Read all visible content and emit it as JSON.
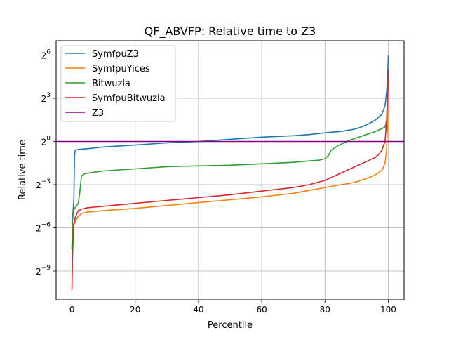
{
  "chart_data": {
    "type": "line",
    "title": "QF_ABVFP: Relative time to Z3",
    "xlabel": "Percentile",
    "ylabel": "Relative time",
    "yscale": "log2",
    "xlim": [
      -5,
      105
    ],
    "ylim_log2": [
      -11,
      7
    ],
    "xticks": [
      0,
      20,
      40,
      60,
      80,
      100
    ],
    "yticks": [
      {
        "base": "2",
        "exp": "6",
        "value_log2": 6
      },
      {
        "base": "2",
        "exp": "3",
        "value_log2": 3
      },
      {
        "base": "2",
        "exp": "0",
        "value_log2": 0
      },
      {
        "base": "2",
        "exp": "−3",
        "value_log2": -3
      },
      {
        "base": "2",
        "exp": "−6",
        "value_log2": -6
      },
      {
        "base": "2",
        "exp": "−9",
        "value_log2": -9
      }
    ],
    "grid": true,
    "legend_position": "top-left",
    "series": [
      {
        "name": "SymfpuZ3",
        "color": "#1f77b4",
        "x": [
          0,
          0.3,
          0.6,
          0.8,
          1.0,
          1.5,
          2,
          5,
          10,
          20,
          30,
          40,
          50,
          60,
          65,
          70,
          75,
          80,
          85,
          88,
          90,
          92,
          94,
          96,
          98,
          99,
          99.5,
          99.8,
          100
        ],
        "log2y": [
          -5.6,
          -5.0,
          -4.0,
          -1.0,
          -0.6,
          -0.58,
          -0.55,
          -0.5,
          -0.38,
          -0.25,
          -0.1,
          0.0,
          0.15,
          0.3,
          0.35,
          0.4,
          0.48,
          0.6,
          0.7,
          0.8,
          0.9,
          1.05,
          1.25,
          1.5,
          1.9,
          2.5,
          3.5,
          4.5,
          6.0
        ]
      },
      {
        "name": "SymfpuYices",
        "color": "#ff7f0e",
        "x": [
          0,
          0.2,
          0.5,
          1,
          2,
          3,
          5,
          10,
          20,
          30,
          40,
          50,
          60,
          70,
          75,
          80,
          85,
          88,
          90,
          92,
          94,
          96,
          98,
          99,
          99.5,
          99.8,
          100
        ],
        "log2y": [
          -7.5,
          -6.0,
          -5.7,
          -5.6,
          -5.2,
          -5.0,
          -4.9,
          -4.8,
          -4.65,
          -4.45,
          -4.25,
          -4.05,
          -3.85,
          -3.6,
          -3.4,
          -3.2,
          -3.0,
          -2.9,
          -2.8,
          -2.65,
          -2.5,
          -2.3,
          -2.0,
          -1.5,
          -0.5,
          1.5,
          4.8
        ]
      },
      {
        "name": "Bitwuzla",
        "color": "#2ca02c",
        "x": [
          0,
          0.2,
          0.5,
          1,
          2,
          2.5,
          3,
          4,
          5,
          10,
          20,
          30,
          40,
          50,
          60,
          70,
          75,
          78,
          80,
          81,
          82,
          84,
          86,
          88,
          90,
          92,
          94,
          96,
          98,
          99,
          99.5,
          100
        ],
        "log2y": [
          -7.5,
          -5.5,
          -4.8,
          -4.6,
          -4.3,
          -3.5,
          -2.4,
          -2.25,
          -2.2,
          -2.05,
          -1.9,
          -1.75,
          -1.7,
          -1.65,
          -1.55,
          -1.45,
          -1.35,
          -1.3,
          -1.2,
          -1.0,
          -0.6,
          -0.3,
          -0.1,
          0.1,
          0.25,
          0.4,
          0.55,
          0.7,
          0.9,
          1.0,
          1.5,
          4.5
        ]
      },
      {
        "name": "SymfpuBitwuzla",
        "color": "#d62728",
        "x": [
          0,
          0.2,
          0.5,
          1,
          2,
          3,
          5,
          10,
          20,
          30,
          40,
          50,
          60,
          70,
          75,
          80,
          85,
          90,
          92,
          94,
          96,
          97,
          98,
          99,
          99.5,
          99.8,
          100
        ],
        "log2y": [
          -10.3,
          -8.0,
          -6.0,
          -5.3,
          -4.8,
          -4.7,
          -4.6,
          -4.5,
          -4.3,
          -4.1,
          -3.9,
          -3.7,
          -3.45,
          -3.2,
          -3.0,
          -2.7,
          -2.2,
          -1.7,
          -1.5,
          -1.3,
          -1.1,
          -0.9,
          -0.6,
          0.0,
          1.5,
          3.5,
          5.0
        ]
      },
      {
        "name": "Z3",
        "color": "#800080",
        "x": [
          -5,
          105
        ],
        "log2y": [
          0,
          0
        ]
      }
    ]
  }
}
